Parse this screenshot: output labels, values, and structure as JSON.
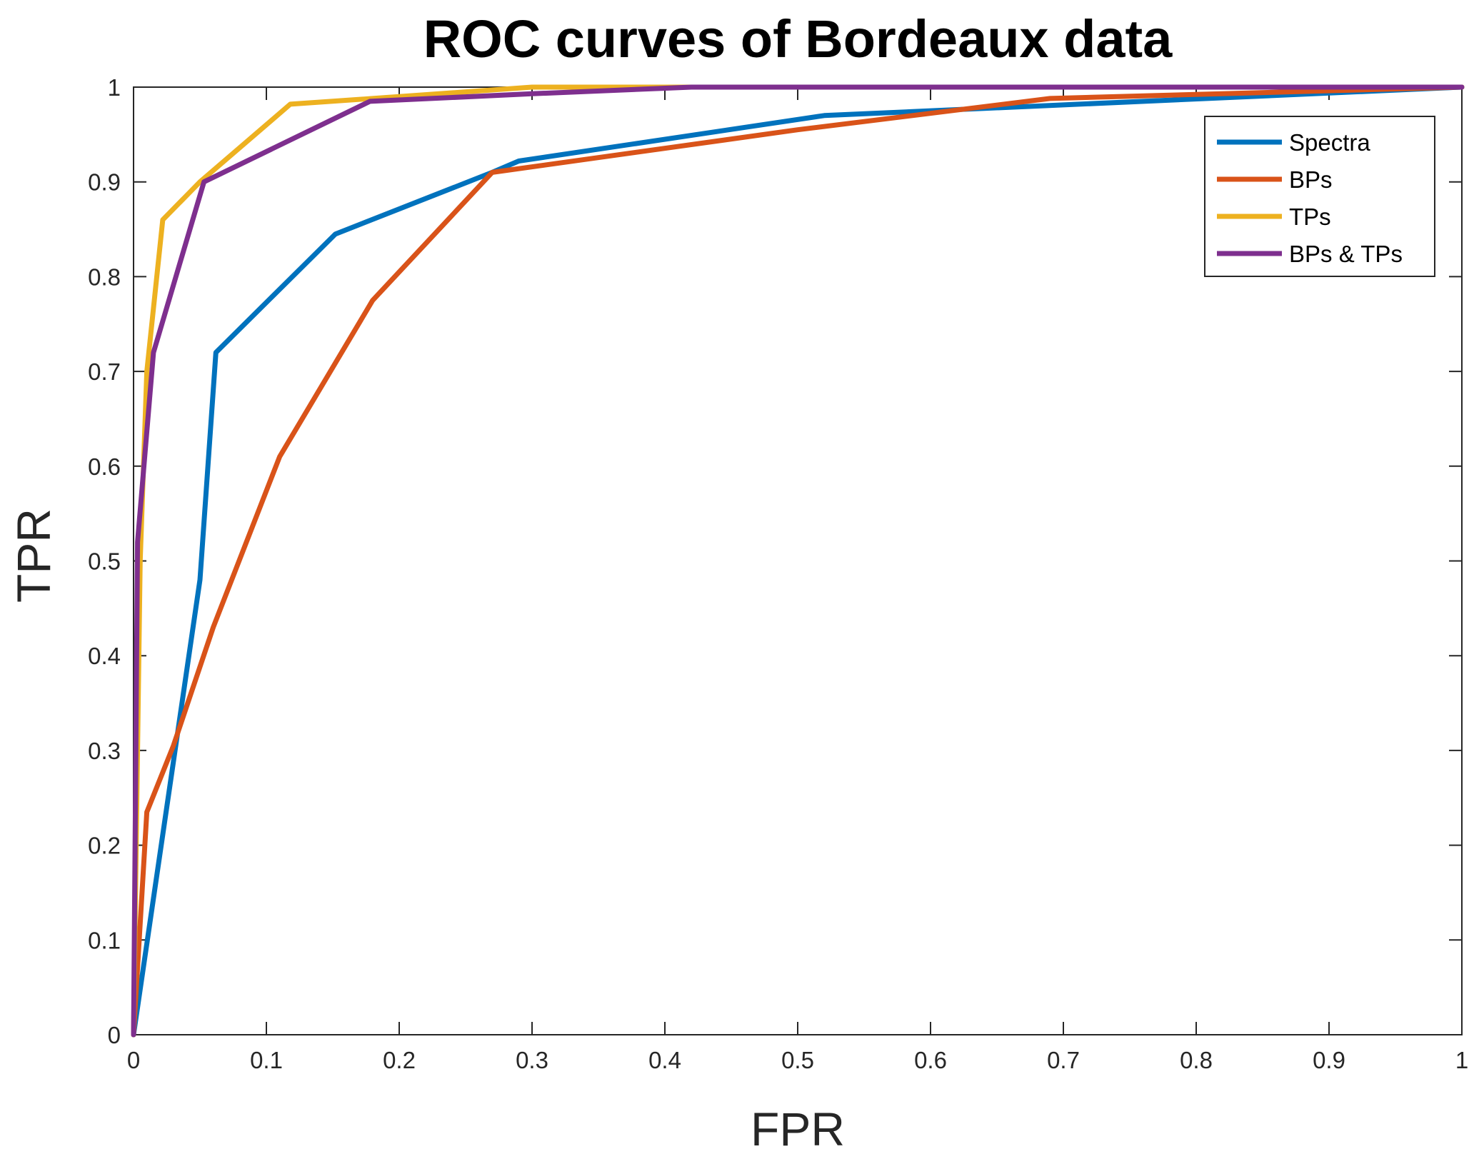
{
  "chart_data": {
    "type": "line",
    "title": "ROC curves of Bordeaux data",
    "xlabel": "FPR",
    "ylabel": "TPR",
    "xlim": [
      0,
      1
    ],
    "ylim": [
      0,
      1
    ],
    "xticks": [
      "0",
      "0.1",
      "0.2",
      "0.3",
      "0.4",
      "0.5",
      "0.6",
      "0.7",
      "0.8",
      "0.9",
      "1"
    ],
    "yticks": [
      "0",
      "0.1",
      "0.2",
      "0.3",
      "0.4",
      "0.5",
      "0.6",
      "0.7",
      "0.8",
      "0.9",
      "1"
    ],
    "grid": false,
    "legend_position": "top-right",
    "series": [
      {
        "name": "Spectra",
        "color": "#0072BD",
        "points": [
          [
            0,
            0
          ],
          [
            0.05,
            0.48
          ],
          [
            0.062,
            0.72
          ],
          [
            0.152,
            0.845
          ],
          [
            0.27,
            0.91
          ],
          [
            0.29,
            0.922
          ],
          [
            0.52,
            0.97
          ],
          [
            1,
            1
          ]
        ]
      },
      {
        "name": "BPs",
        "color": "#D95319",
        "points": [
          [
            0,
            0
          ],
          [
            0.01,
            0.235
          ],
          [
            0.03,
            0.305
          ],
          [
            0.06,
            0.43
          ],
          [
            0.11,
            0.61
          ],
          [
            0.18,
            0.775
          ],
          [
            0.27,
            0.91
          ],
          [
            0.5,
            0.955
          ],
          [
            0.69,
            0.988
          ],
          [
            1,
            1
          ]
        ]
      },
      {
        "name": "TPs",
        "color": "#EDB120",
        "points": [
          [
            0,
            0
          ],
          [
            0.005,
            0.5
          ],
          [
            0.01,
            0.7
          ],
          [
            0.022,
            0.86
          ],
          [
            0.05,
            0.9
          ],
          [
            0.118,
            0.982
          ],
          [
            0.18,
            0.988
          ],
          [
            0.3,
            1
          ],
          [
            1,
            1
          ]
        ]
      },
      {
        "name": "BPs & TPs",
        "color": "#7E2F8E",
        "points": [
          [
            0,
            0
          ],
          [
            0.003,
            0.52
          ],
          [
            0.015,
            0.72
          ],
          [
            0.053,
            0.9
          ],
          [
            0.178,
            0.985
          ],
          [
            0.3,
            0.993
          ],
          [
            0.42,
            1
          ],
          [
            1,
            1
          ]
        ]
      }
    ]
  }
}
